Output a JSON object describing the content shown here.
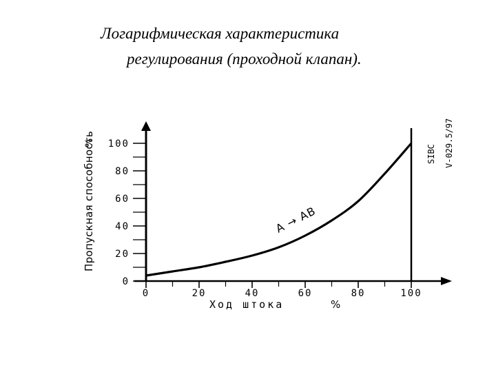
{
  "slide": {
    "title_line1": "Логарифмическая характеристика",
    "title_line2": "регулирования (проходной клапан)."
  },
  "chart_data": {
    "type": "line",
    "title": "",
    "xlabel": "Ход штока",
    "xunit": "%",
    "ylabel": "Пропускная способность",
    "yunit": "%",
    "xlim": [
      0,
      100
    ],
    "ylim": [
      0,
      100
    ],
    "x_ticks": [
      "0",
      "20",
      "40",
      "60",
      "80",
      "100"
    ],
    "y_ticks": [
      "0",
      "20",
      "40",
      "60",
      "80",
      "100"
    ],
    "grid": false,
    "series": [
      {
        "name": "A → AB",
        "x": [
          0,
          10,
          20,
          30,
          40,
          50,
          60,
          70,
          80,
          90,
          100
        ],
        "y": [
          4,
          7,
          10,
          14,
          18.5,
          24.5,
          33,
          44,
          58,
          78,
          100
        ]
      }
    ],
    "side_text_top": "SIBC",
    "side_text_bottom": "V-029.5/97"
  }
}
